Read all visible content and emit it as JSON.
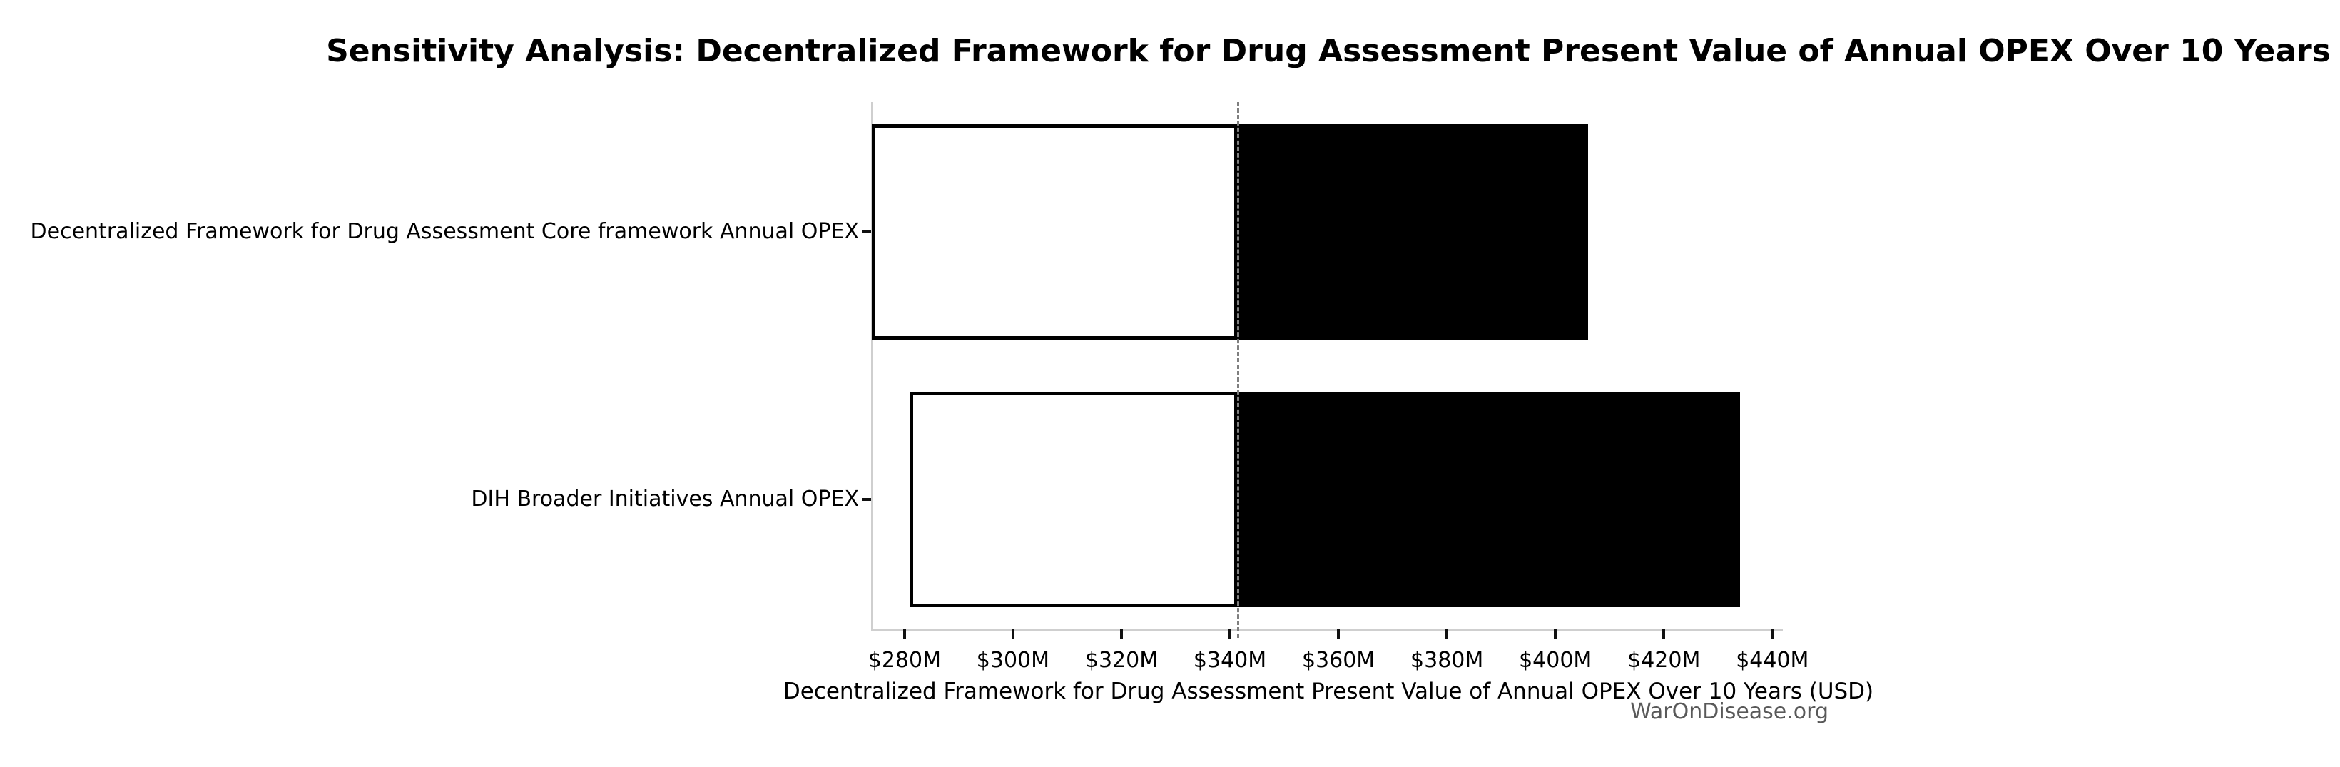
{
  "title": "Sensitivity Analysis: Decentralized Framework for Drug Assessment Present Value of Annual OPEX Over 10 Years",
  "watermark": {
    "text": "WarOnDisease.org",
    "color": "#595959"
  },
  "chart_data": {
    "type": "bar",
    "subtype": "tornado-sensitivity",
    "orientation": "horizontal",
    "title": "Sensitivity Analysis: Decentralized Framework for Drug Assessment Present Value of Annual OPEX Over 10 Years",
    "xlabel": "Decentralized Framework for Drug Assessment Present Value of Annual OPEX Over 10 Years (USD)",
    "ylabel": "",
    "units": "USD millions",
    "categories": [
      "Decentralized Framework for Drug Assessment Core framework Annual OPEX",
      "DIH Broader Initiatives Annual OPEX"
    ],
    "bars": [
      {
        "label": "Decentralized Framework for Drug Assessment Core framework Annual OPEX",
        "low_musd": 274,
        "high_musd": 406
      },
      {
        "label": "DIH Broader Initiatives Annual OPEX",
        "low_musd": 281,
        "high_musd": 434
      }
    ],
    "base_value_musd": 341.5,
    "x_tick_values_musd": [
      280,
      300,
      320,
      340,
      360,
      380,
      400,
      420,
      440
    ],
    "x_tick_labels": [
      "$280M",
      "$300M",
      "$320M",
      "$340M",
      "$360M",
      "$380M",
      "$400M",
      "$420M",
      "$440M"
    ],
    "xlim_musd": [
      274.1,
      441.8
    ],
    "grid": false,
    "legend": null,
    "colors": {
      "low_segment_fill": "#ffffff",
      "high_segment_fill": "#000000",
      "bar_edge": "#000000",
      "baseline_dashed": "#7f7f7f",
      "spine": "#cfcfcf",
      "tick_mark": "#111111",
      "text": "#000000",
      "watermark": "#595959",
      "background": "#ffffff"
    }
  }
}
